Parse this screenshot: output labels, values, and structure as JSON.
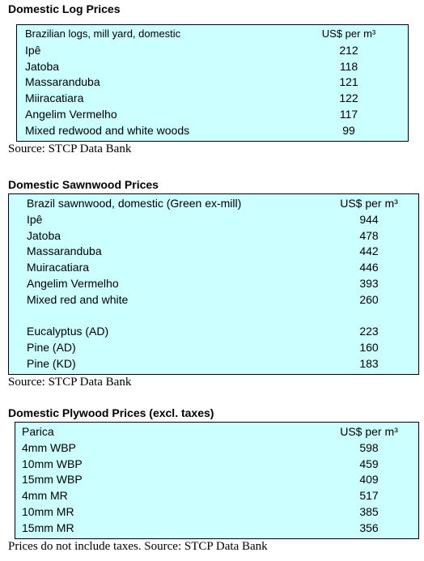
{
  "sections": [
    {
      "title": "Domestic Log Prices",
      "header": [
        "Brazilian logs, mill yard, domestic",
        "US$ per m³"
      ],
      "groups": [
        [
          [
            "Ipê",
            212
          ],
          [
            "Jatoba",
            118
          ],
          [
            "Massaranduba",
            121
          ],
          [
            "Miiracatiara",
            122
          ],
          [
            "Angelim Vermelho",
            117
          ],
          [
            "Mixed redwood and white woods",
            99
          ]
        ]
      ],
      "source": "Source: STCP Data Bank"
    },
    {
      "title": "Domestic Sawnwood Prices",
      "header": [
        "Brazil sawnwood, domestic (Green ex-mill)",
        "US$ per m³"
      ],
      "groups": [
        [
          [
            "Ipê",
            944
          ],
          [
            "Jatoba",
            478
          ],
          [
            "Massaranduba",
            442
          ],
          [
            "Muiracatiara",
            446
          ],
          [
            "Angelim Vermelho",
            393
          ],
          [
            "Mixed red and white",
            260
          ]
        ],
        [
          [
            "Eucalyptus (AD)",
            223
          ],
          [
            "Pine (AD)",
            160
          ],
          [
            "Pine (KD)",
            183
          ]
        ]
      ],
      "source": "Source: STCP Data Bank"
    },
    {
      "title": "Domestic Plywood Prices (excl. taxes)",
      "header": [
        "Parica",
        "US$ per m³"
      ],
      "groups": [
        [
          [
            "4mm WBP",
            598
          ],
          [
            "10mm WBP",
            459
          ],
          [
            "15mm WBP",
            409
          ],
          [
            "4mm MR",
            517
          ],
          [
            "10mm MR",
            385
          ],
          [
            "15mm MR",
            356
          ]
        ]
      ],
      "source": "Prices do not include taxes. Source: STCP Data Bank"
    }
  ]
}
